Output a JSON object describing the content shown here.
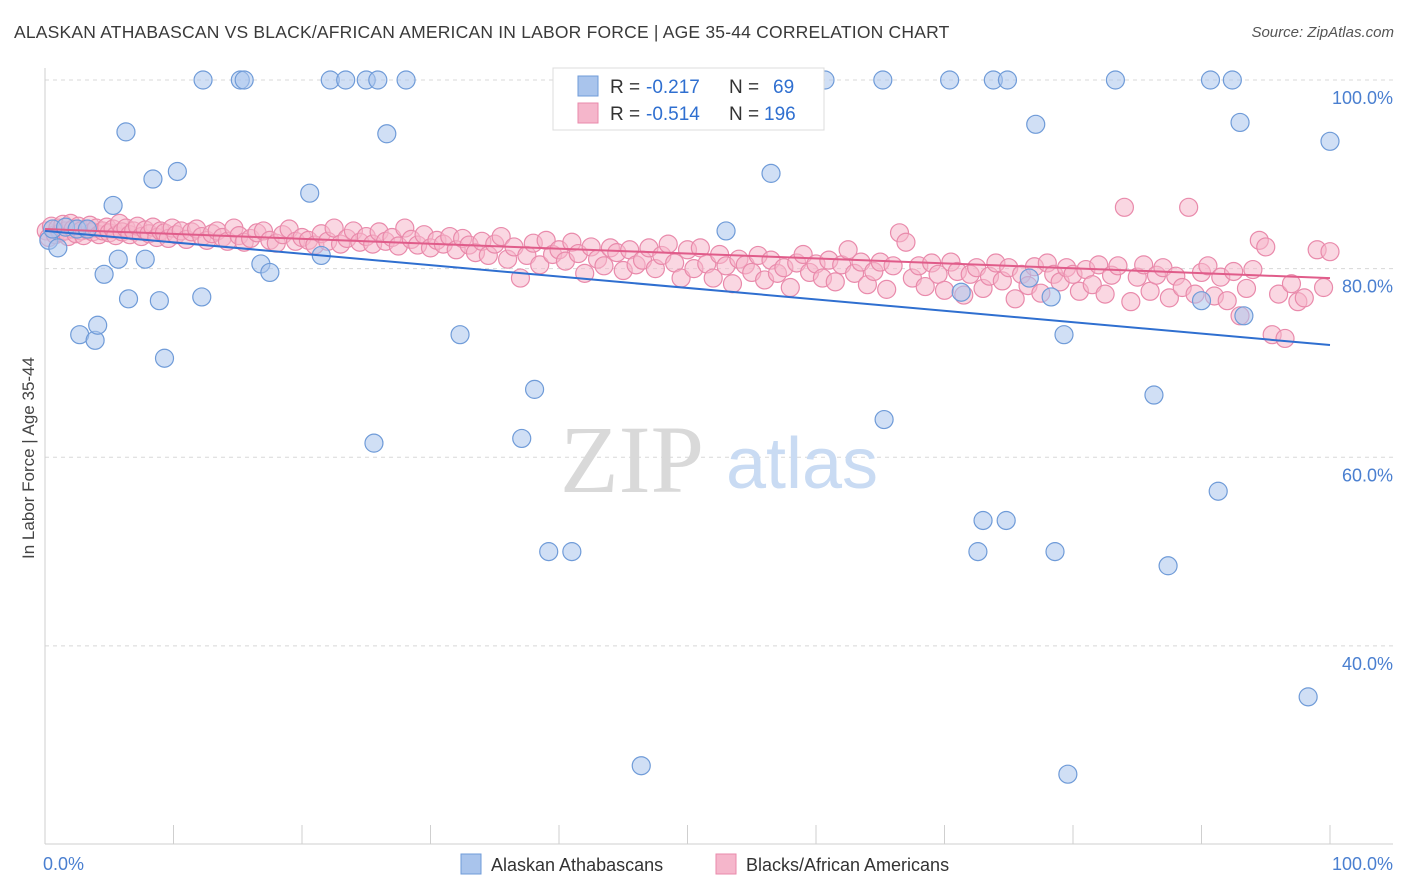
{
  "title": "ALASKAN ATHABASCAN VS BLACK/AFRICAN AMERICAN IN LABOR FORCE | AGE 35-44 CORRELATION CHART",
  "source": "Source: ZipAtlas.com",
  "watermark": {
    "zip": "ZIP",
    "atlas": "atlas"
  },
  "colors": {
    "blue_fill": "#a9c4ec",
    "blue_stroke": "#6f9bd8",
    "blue_line": "#2f6fd0",
    "pink_fill": "#f5b6cb",
    "pink_stroke": "#e98aab",
    "pink_line": "#e05c8a",
    "tick_text": "#4a7fd0",
    "grid": "#d8d8d8"
  },
  "legend": {
    "rows": [
      {
        "r_label": "R =",
        "r_value": "-0.217",
        "n_label": "N =",
        "n_value": "69"
      },
      {
        "r_label": "R =",
        "r_value": "-0.514",
        "n_label": "N =",
        "n_value": "196"
      }
    ]
  },
  "chart_data": {
    "type": "scatter",
    "title": "ALASKAN ATHABASCAN VS BLACK/AFRICAN AMERICAN IN LABOR FORCE | AGE 35-44 CORRELATION CHART",
    "xlabel": "",
    "ylabel": "In Labor Force | Age 35-44",
    "xlim": [
      0,
      100
    ],
    "ylim": [
      19,
      100
    ],
    "x_tick_labels": [
      "0.0%",
      "100.0%"
    ],
    "y_ticks": [
      40,
      60,
      80,
      100
    ],
    "y_tick_labels": [
      "40.0%",
      "60.0%",
      "80.0%",
      "100.0%"
    ],
    "grid": true,
    "legend_position": "bottom",
    "series": [
      {
        "name": "Alaskan Athabascans",
        "regression": {
          "r": -0.217,
          "n": 69,
          "y_at_0": 84.0,
          "y_at_100": 71.9
        },
        "points": [
          [
            0.3,
            83.0
          ],
          [
            0.6,
            84.2
          ],
          [
            1.0,
            82.2
          ],
          [
            1.6,
            84.4
          ],
          [
            2.5,
            84.2
          ],
          [
            3.3,
            84.2
          ],
          [
            2.7,
            73.0
          ],
          [
            3.9,
            72.4
          ],
          [
            4.1,
            74.0
          ],
          [
            4.6,
            79.4
          ],
          [
            5.3,
            86.7
          ],
          [
            5.7,
            81.0
          ],
          [
            6.3,
            94.5
          ],
          [
            6.5,
            76.8
          ],
          [
            7.8,
            81.0
          ],
          [
            8.4,
            89.5
          ],
          [
            8.9,
            76.6
          ],
          [
            9.3,
            70.5
          ],
          [
            10.3,
            90.3
          ],
          [
            12.2,
            77.0
          ],
          [
            12.3,
            100.0
          ],
          [
            15.2,
            100.0
          ],
          [
            15.5,
            100.0
          ],
          [
            16.8,
            80.5
          ],
          [
            17.5,
            79.6
          ],
          [
            20.6,
            88.0
          ],
          [
            21.5,
            81.4
          ],
          [
            22.2,
            100.0
          ],
          [
            23.4,
            100.0
          ],
          [
            25.0,
            100.0
          ],
          [
            25.9,
            100.0
          ],
          [
            25.6,
            61.5
          ],
          [
            26.6,
            94.3
          ],
          [
            28.1,
            100.0
          ],
          [
            32.3,
            73.0
          ],
          [
            38.1,
            67.2
          ],
          [
            37.1,
            62.0
          ],
          [
            39.2,
            50.0
          ],
          [
            41.0,
            50.0
          ],
          [
            46.4,
            27.3
          ],
          [
            53.0,
            84.0
          ],
          [
            56.5,
            90.1
          ],
          [
            60.7,
            100.0
          ],
          [
            65.2,
            100.0
          ],
          [
            65.3,
            64.0
          ],
          [
            70.4,
            100.0
          ],
          [
            71.3,
            77.5
          ],
          [
            73.0,
            53.3
          ],
          [
            72.6,
            50.0
          ],
          [
            73.8,
            100.0
          ],
          [
            74.8,
            53.3
          ],
          [
            74.9,
            100.0
          ],
          [
            76.6,
            79.0
          ],
          [
            77.1,
            95.3
          ],
          [
            78.3,
            77.0
          ],
          [
            78.6,
            50.0
          ],
          [
            79.3,
            73.0
          ],
          [
            79.6,
            26.4
          ],
          [
            83.3,
            100.0
          ],
          [
            86.3,
            66.6
          ],
          [
            87.4,
            48.5
          ],
          [
            90.0,
            76.6
          ],
          [
            90.7,
            100.0
          ],
          [
            91.3,
            56.4
          ],
          [
            92.4,
            100.0
          ],
          [
            93.0,
            95.5
          ],
          [
            93.3,
            75.0
          ],
          [
            100.0,
            93.5
          ],
          [
            98.3,
            34.6
          ]
        ]
      },
      {
        "name": "Blacks/African Americans",
        "regression": {
          "r": -0.514,
          "n": 196,
          "y_at_0": 84.2,
          "y_at_100": 79.0
        },
        "points": [
          [
            0.1,
            84.0
          ],
          [
            0.3,
            83.3
          ],
          [
            0.5,
            84.5
          ],
          [
            0.8,
            83.6
          ],
          [
            1.0,
            84.3
          ],
          [
            1.2,
            83.8
          ],
          [
            1.4,
            84.7
          ],
          [
            1.6,
            84.0
          ],
          [
            1.8,
            83.4
          ],
          [
            2.0,
            84.8
          ],
          [
            2.2,
            84.2
          ],
          [
            2.4,
            83.7
          ],
          [
            2.6,
            84.5
          ],
          [
            2.8,
            84.0
          ],
          [
            3.0,
            83.5
          ],
          [
            3.3,
            84.1
          ],
          [
            3.5,
            84.6
          ],
          [
            3.7,
            83.9
          ],
          [
            4.0,
            84.3
          ],
          [
            4.2,
            83.6
          ],
          [
            4.5,
            84.0
          ],
          [
            4.8,
            84.4
          ],
          [
            5.0,
            83.8
          ],
          [
            5.3,
            84.2
          ],
          [
            5.5,
            83.5
          ],
          [
            5.8,
            84.8
          ],
          [
            6.0,
            83.9
          ],
          [
            6.3,
            84.3
          ],
          [
            6.6,
            83.6
          ],
          [
            6.9,
            84.0
          ],
          [
            7.2,
            84.5
          ],
          [
            7.5,
            83.4
          ],
          [
            7.8,
            84.1
          ],
          [
            8.1,
            83.7
          ],
          [
            8.4,
            84.4
          ],
          [
            8.7,
            83.3
          ],
          [
            9.0,
            84.0
          ],
          [
            9.3,
            83.8
          ],
          [
            9.6,
            83.2
          ],
          [
            9.9,
            84.3
          ],
          [
            10.2,
            83.6
          ],
          [
            10.6,
            84.0
          ],
          [
            11.0,
            83.1
          ],
          [
            11.4,
            83.9
          ],
          [
            11.8,
            84.2
          ],
          [
            12.2,
            83.4
          ],
          [
            12.6,
            83.0
          ],
          [
            13.0,
            83.7
          ],
          [
            13.4,
            84.0
          ],
          [
            13.8,
            83.3
          ],
          [
            14.2,
            82.9
          ],
          [
            14.7,
            84.3
          ],
          [
            15.1,
            83.5
          ],
          [
            15.5,
            82.8
          ],
          [
            16.0,
            83.2
          ],
          [
            16.5,
            83.8
          ],
          [
            17.0,
            84.0
          ],
          [
            17.5,
            83.0
          ],
          [
            18.0,
            82.7
          ],
          [
            18.5,
            83.6
          ],
          [
            19.0,
            84.2
          ],
          [
            19.5,
            82.9
          ],
          [
            20.0,
            83.3
          ],
          [
            20.5,
            83.0
          ],
          [
            21.0,
            82.5
          ],
          [
            21.5,
            83.7
          ],
          [
            22.0,
            82.9
          ],
          [
            22.5,
            84.3
          ],
          [
            23.0,
            82.6
          ],
          [
            23.5,
            83.2
          ],
          [
            24.0,
            84.0
          ],
          [
            24.5,
            82.8
          ],
          [
            25.0,
            83.4
          ],
          [
            25.5,
            82.6
          ],
          [
            26.0,
            83.9
          ],
          [
            26.5,
            82.9
          ],
          [
            27.0,
            83.3
          ],
          [
            27.5,
            82.4
          ],
          [
            28.0,
            84.3
          ],
          [
            28.5,
            83.1
          ],
          [
            29.0,
            82.5
          ],
          [
            29.5,
            83.6
          ],
          [
            30.0,
            82.2
          ],
          [
            30.5,
            83.0
          ],
          [
            31.0,
            82.6
          ],
          [
            31.5,
            83.4
          ],
          [
            32.0,
            82.0
          ],
          [
            32.5,
            83.2
          ],
          [
            33.0,
            82.5
          ],
          [
            33.5,
            81.7
          ],
          [
            34.0,
            82.9
          ],
          [
            34.5,
            81.4
          ],
          [
            35.0,
            82.6
          ],
          [
            35.5,
            83.4
          ],
          [
            36.0,
            81.0
          ],
          [
            36.5,
            82.3
          ],
          [
            37.0,
            79.0
          ],
          [
            37.5,
            81.4
          ],
          [
            38.0,
            82.7
          ],
          [
            38.5,
            80.4
          ],
          [
            39.0,
            83.0
          ],
          [
            39.5,
            81.5
          ],
          [
            40.0,
            82.0
          ],
          [
            40.5,
            80.8
          ],
          [
            41.0,
            82.8
          ],
          [
            41.5,
            81.6
          ],
          [
            42.0,
            79.5
          ],
          [
            42.5,
            82.3
          ],
          [
            43.0,
            81.0
          ],
          [
            43.5,
            80.3
          ],
          [
            44.0,
            82.2
          ],
          [
            44.5,
            81.7
          ],
          [
            45.0,
            79.8
          ],
          [
            45.5,
            82.0
          ],
          [
            46.0,
            80.4
          ],
          [
            46.5,
            80.9
          ],
          [
            47.0,
            82.2
          ],
          [
            47.5,
            80.0
          ],
          [
            48.0,
            81.4
          ],
          [
            48.5,
            82.6
          ],
          [
            49.0,
            80.6
          ],
          [
            49.5,
            79.0
          ],
          [
            50.0,
            82.0
          ],
          [
            50.5,
            80.0
          ],
          [
            51.0,
            82.2
          ],
          [
            51.5,
            80.5
          ],
          [
            52.0,
            79.0
          ],
          [
            52.5,
            81.5
          ],
          [
            53.0,
            80.3
          ],
          [
            53.5,
            78.4
          ],
          [
            54.0,
            81.0
          ],
          [
            54.5,
            80.4
          ],
          [
            55.0,
            79.6
          ],
          [
            55.5,
            81.4
          ],
          [
            56.0,
            78.8
          ],
          [
            56.5,
            80.9
          ],
          [
            57.0,
            79.5
          ],
          [
            57.5,
            80.1
          ],
          [
            58.0,
            78.0
          ],
          [
            58.5,
            80.6
          ],
          [
            59.0,
            81.5
          ],
          [
            59.5,
            79.6
          ],
          [
            60.0,
            80.5
          ],
          [
            60.5,
            79.0
          ],
          [
            61.0,
            80.9
          ],
          [
            61.5,
            78.6
          ],
          [
            62.0,
            80.4
          ],
          [
            62.5,
            82.0
          ],
          [
            63.0,
            79.5
          ],
          [
            63.5,
            80.7
          ],
          [
            64.0,
            78.3
          ],
          [
            64.5,
            79.7
          ],
          [
            65.0,
            80.7
          ],
          [
            65.5,
            77.8
          ],
          [
            66.0,
            80.3
          ],
          [
            66.5,
            83.8
          ],
          [
            67.0,
            82.8
          ],
          [
            67.5,
            79.0
          ],
          [
            68.0,
            80.3
          ],
          [
            68.5,
            78.1
          ],
          [
            69.0,
            80.6
          ],
          [
            69.5,
            79.4
          ],
          [
            70.0,
            77.7
          ],
          [
            70.5,
            80.7
          ],
          [
            71.0,
            79.7
          ],
          [
            71.5,
            77.2
          ],
          [
            72.0,
            79.4
          ],
          [
            72.5,
            80.1
          ],
          [
            73.0,
            77.9
          ],
          [
            73.5,
            79.2
          ],
          [
            74.0,
            80.6
          ],
          [
            74.5,
            78.7
          ],
          [
            75.0,
            80.1
          ],
          [
            75.5,
            76.8
          ],
          [
            76.0,
            79.4
          ],
          [
            76.5,
            78.2
          ],
          [
            77.0,
            80.2
          ],
          [
            77.5,
            77.4
          ],
          [
            78.0,
            80.6
          ],
          [
            78.5,
            79.4
          ],
          [
            79.0,
            78.6
          ],
          [
            79.5,
            80.1
          ],
          [
            80.0,
            79.4
          ],
          [
            80.5,
            77.6
          ],
          [
            81.0,
            79.9
          ],
          [
            81.5,
            78.3
          ],
          [
            82.0,
            80.4
          ],
          [
            82.5,
            77.3
          ],
          [
            83.0,
            79.3
          ],
          [
            83.5,
            80.3
          ],
          [
            84.0,
            86.5
          ],
          [
            84.5,
            76.5
          ],
          [
            85.0,
            79.1
          ],
          [
            85.5,
            80.4
          ],
          [
            86.0,
            77.6
          ],
          [
            86.5,
            79.3
          ],
          [
            87.0,
            80.1
          ],
          [
            87.5,
            76.9
          ],
          [
            88.0,
            79.2
          ],
          [
            88.5,
            78.0
          ],
          [
            89.0,
            86.5
          ],
          [
            89.5,
            77.3
          ],
          [
            90.0,
            79.6
          ],
          [
            90.5,
            80.3
          ],
          [
            91.0,
            77.1
          ],
          [
            91.5,
            79.1
          ],
          [
            92.0,
            76.6
          ],
          [
            92.5,
            79.7
          ],
          [
            93.0,
            75.0
          ],
          [
            93.5,
            77.9
          ],
          [
            94.0,
            79.9
          ],
          [
            94.5,
            83.0
          ],
          [
            95.0,
            82.3
          ],
          [
            95.5,
            73.0
          ],
          [
            96.0,
            77.3
          ],
          [
            96.5,
            72.6
          ],
          [
            97.0,
            78.4
          ],
          [
            97.5,
            76.5
          ],
          [
            98.0,
            76.9
          ],
          [
            99.0,
            82.0
          ],
          [
            100.0,
            81.8
          ],
          [
            99.5,
            78.0
          ]
        ]
      }
    ]
  },
  "bottom_legend": {
    "items": [
      "Alaskan Athabascans",
      "Blacks/African Americans"
    ]
  }
}
